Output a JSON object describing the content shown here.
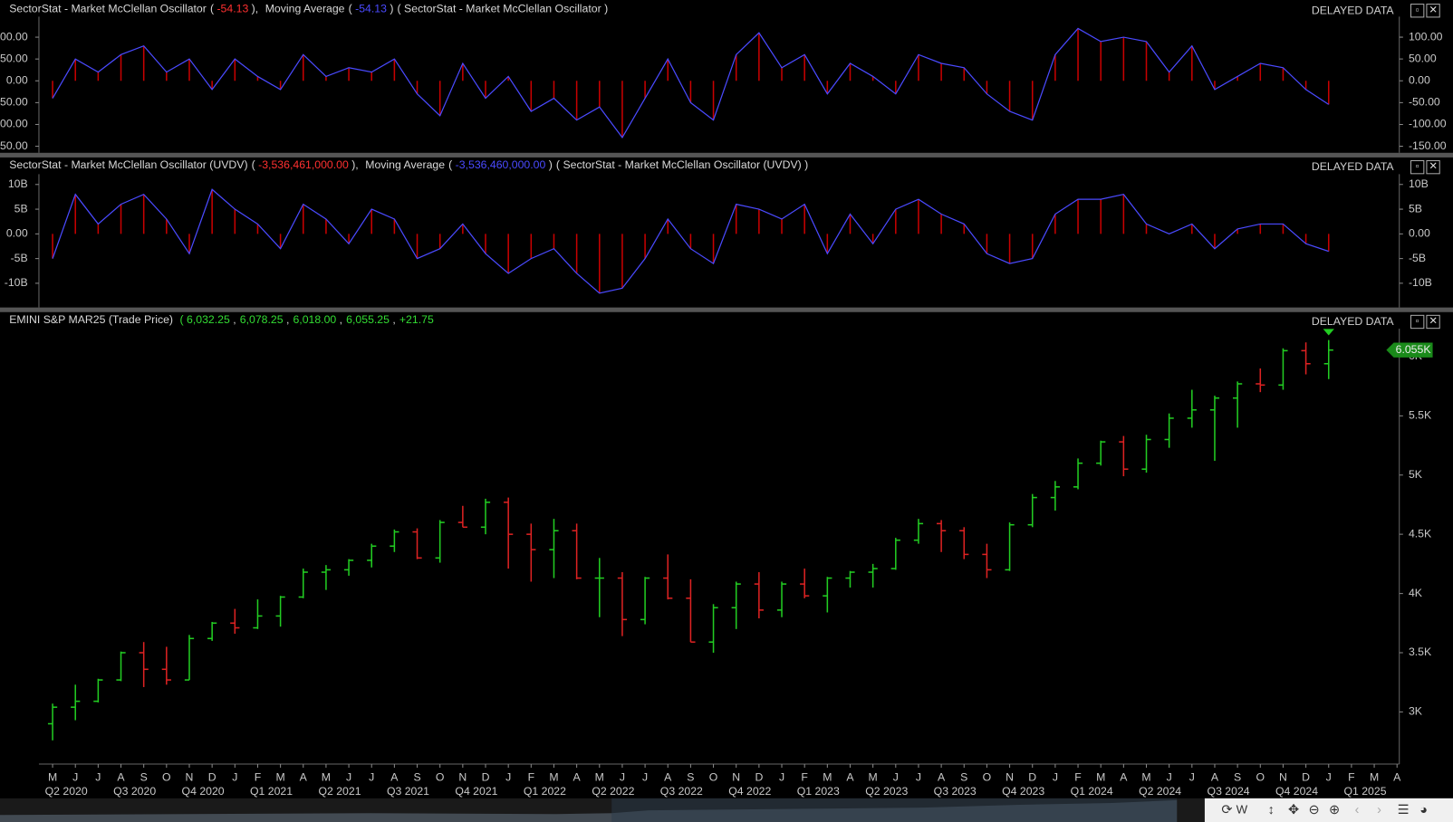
{
  "delayed": "DELAYED DATA",
  "toolbar": {
    "interval": "W"
  },
  "chart_data": [
    {
      "type": "oscillator",
      "name": "SectorStat - Market McClellan Oscillator",
      "value_label": "-54.13",
      "ma_name": "Moving Average",
      "ma_value_label": "-54.13",
      "source": "SectorStat - Market McClellan Oscillator",
      "color": "#c80000",
      "line_color": "#4a4aff",
      "xlim": [
        -0.6,
        59.1
      ],
      "ylim": [
        -165,
        147
      ],
      "yticks": [
        {
          "value": 100,
          "label": "100.00"
        },
        {
          "value": 50,
          "label": "50.00"
        },
        {
          "value": 0,
          "label": "0.00"
        },
        {
          "value": -50,
          "label": "-50.00"
        },
        {
          "value": -100,
          "label": "-100.00"
        },
        {
          "value": -150,
          "label": "-150.00"
        }
      ],
      "values": [
        -40,
        50,
        20,
        60,
        80,
        20,
        50,
        -20,
        50,
        10,
        -20,
        60,
        10,
        30,
        20,
        50,
        -30,
        -80,
        40,
        -40,
        10,
        -70,
        -40,
        -90,
        -60,
        -130,
        -40,
        50,
        -50,
        -90,
        60,
        110,
        30,
        60,
        -30,
        40,
        10,
        -30,
        60,
        40,
        30,
        -30,
        -70,
        -90,
        60,
        120,
        90,
        100,
        90,
        20,
        80,
        -20,
        10,
        40,
        30,
        -20,
        -54.13
      ]
    },
    {
      "type": "oscillator",
      "name": "SectorStat - Market McClellan Oscillator (UVDV)",
      "value_label": "-3,536,461,000.00",
      "ma_name": "Moving Average",
      "ma_value_label": "-3,536,460,000.00",
      "source": "SectorStat - Market McClellan Oscillator (UVDV)",
      "color": "#c80000",
      "line_color": "#4a4aff",
      "xlim": [
        -0.6,
        59.1
      ],
      "ylim": [
        -14900000000.0,
        12100000000.0
      ],
      "yticks": [
        {
          "value": 10000000000.0,
          "label": "10B"
        },
        {
          "value": 5000000000.0,
          "label": "5B"
        },
        {
          "value": 0,
          "label": "0.00"
        },
        {
          "value": -5000000000.0,
          "label": "-5B"
        },
        {
          "value": -10000000000.0,
          "label": "-10B"
        }
      ],
      "values": [
        -5000000000.0,
        8000000000.0,
        2000000000.0,
        6000000000.0,
        8000000000.0,
        3000000000.0,
        -4000000000.0,
        9000000000.0,
        5000000000.0,
        2000000000.0,
        -3000000000.0,
        6000000000.0,
        3000000000.0,
        -2000000000.0,
        5000000000.0,
        3000000000.0,
        -5000000000.0,
        -3000000000.0,
        2000000000.0,
        -4000000000.0,
        -8000000000.0,
        -5000000000.0,
        -3000000000.0,
        -8000000000.0,
        -12000000000.0,
        -11000000000.0,
        -5000000000.0,
        3000000000.0,
        -3000000000.0,
        -6000000000.0,
        6000000000.0,
        5000000000.0,
        3000000000.0,
        6000000000.0,
        -4000000000.0,
        4000000000.0,
        -2000000000.0,
        5000000000.0,
        7000000000.0,
        4000000000.0,
        2000000000.0,
        -4000000000.0,
        -6000000000.0,
        -5000000000.0,
        4000000000.0,
        7000000000.0,
        7000000000.0,
        8000000000.0,
        2000000000.0,
        0,
        2000000000.0,
        -3000000000.0,
        1000000000.0,
        2000000000.0,
        2000000000.0,
        -2000000000.0,
        -3536461000
      ]
    },
    {
      "type": "ohlc",
      "name": "EMINI S&P MAR25 (Trade Price)",
      "quote": [
        "6,032.25",
        "6,078.25",
        "6,018.00",
        "6,055.25",
        "+21.75"
      ],
      "last_label": "6.055K",
      "up_color": "#22cc22",
      "down_color": "#dd2222",
      "xlim": [
        -0.6,
        59.1
      ],
      "ylim": [
        2560,
        6235
      ],
      "yticks": [
        {
          "value": 3000,
          "label": "3K"
        },
        {
          "value": 3500,
          "label": "3.5K"
        },
        {
          "value": 4000,
          "label": "4K"
        },
        {
          "value": 4500,
          "label": "4.5K"
        },
        {
          "value": 5000,
          "label": "5K"
        },
        {
          "value": 5500,
          "label": "5.5K"
        },
        {
          "value": 6000,
          "label": "6K"
        }
      ],
      "xticks": [
        {
          "value": 0,
          "label": "M"
        },
        {
          "value": 1,
          "label": "J"
        },
        {
          "value": 2,
          "label": "J"
        },
        {
          "value": 3,
          "label": "A"
        },
        {
          "value": 4,
          "label": "S"
        },
        {
          "value": 5,
          "label": "O"
        },
        {
          "value": 6,
          "label": "N"
        },
        {
          "value": 7,
          "label": "D"
        },
        {
          "value": 8,
          "label": "J"
        },
        {
          "value": 9,
          "label": "F"
        },
        {
          "value": 10,
          "label": "M"
        },
        {
          "value": 11,
          "label": "A"
        },
        {
          "value": 12,
          "label": "M"
        },
        {
          "value": 13,
          "label": "J"
        },
        {
          "value": 14,
          "label": "J"
        },
        {
          "value": 15,
          "label": "A"
        },
        {
          "value": 16,
          "label": "S"
        },
        {
          "value": 17,
          "label": "O"
        },
        {
          "value": 18,
          "label": "N"
        },
        {
          "value": 19,
          "label": "D"
        },
        {
          "value": 20,
          "label": "J"
        },
        {
          "value": 21,
          "label": "F"
        },
        {
          "value": 22,
          "label": "M"
        },
        {
          "value": 23,
          "label": "A"
        },
        {
          "value": 24,
          "label": "M"
        },
        {
          "value": 25,
          "label": "J"
        },
        {
          "value": 26,
          "label": "J"
        },
        {
          "value": 27,
          "label": "A"
        },
        {
          "value": 28,
          "label": "S"
        },
        {
          "value": 29,
          "label": "O"
        },
        {
          "value": 30,
          "label": "N"
        },
        {
          "value": 31,
          "label": "D"
        },
        {
          "value": 32,
          "label": "J"
        },
        {
          "value": 33,
          "label": "F"
        },
        {
          "value": 34,
          "label": "M"
        },
        {
          "value": 35,
          "label": "A"
        },
        {
          "value": 36,
          "label": "M"
        },
        {
          "value": 37,
          "label": "J"
        },
        {
          "value": 38,
          "label": "J"
        },
        {
          "value": 39,
          "label": "A"
        },
        {
          "value": 40,
          "label": "S"
        },
        {
          "value": 41,
          "label": "O"
        },
        {
          "value": 42,
          "label": "N"
        },
        {
          "value": 43,
          "label": "D"
        },
        {
          "value": 44,
          "label": "J"
        },
        {
          "value": 45,
          "label": "F"
        },
        {
          "value": 46,
          "label": "M"
        },
        {
          "value": 47,
          "label": "A"
        },
        {
          "value": 48,
          "label": "M"
        },
        {
          "value": 49,
          "label": "J"
        },
        {
          "value": 50,
          "label": "J"
        },
        {
          "value": 51,
          "label": "A"
        },
        {
          "value": 52,
          "label": "S"
        },
        {
          "value": 53,
          "label": "O"
        },
        {
          "value": 54,
          "label": "N"
        },
        {
          "value": 55,
          "label": "D"
        },
        {
          "value": 56,
          "label": "J"
        },
        {
          "value": 57,
          "label": "F"
        },
        {
          "value": 58,
          "label": "M"
        },
        {
          "value": 59,
          "label": "A"
        }
      ],
      "quarter_ticks": [
        {
          "value": 0.6,
          "label": "Q2 2020"
        },
        {
          "value": 3.6,
          "label": "Q3 2020"
        },
        {
          "value": 6.6,
          "label": "Q4 2020"
        },
        {
          "value": 9.6,
          "label": "Q1 2021"
        },
        {
          "value": 12.6,
          "label": "Q2 2021"
        },
        {
          "value": 15.6,
          "label": "Q3 2021"
        },
        {
          "value": 18.6,
          "label": "Q4 2021"
        },
        {
          "value": 21.6,
          "label": "Q1 2022"
        },
        {
          "value": 24.6,
          "label": "Q2 2022"
        },
        {
          "value": 27.6,
          "label": "Q3 2022"
        },
        {
          "value": 30.6,
          "label": "Q4 2022"
        },
        {
          "value": 33.6,
          "label": "Q1 2023"
        },
        {
          "value": 36.6,
          "label": "Q2 2023"
        },
        {
          "value": 39.6,
          "label": "Q3 2023"
        },
        {
          "value": 42.6,
          "label": "Q4 2023"
        },
        {
          "value": 45.6,
          "label": "Q1 2024"
        },
        {
          "value": 48.6,
          "label": "Q2 2024"
        },
        {
          "value": 51.6,
          "label": "Q3 2024"
        },
        {
          "value": 54.6,
          "label": "Q4 2024"
        },
        {
          "value": 57.6,
          "label": "Q1 2025"
        }
      ],
      "values": [
        [
          2900,
          3070,
          2760,
          3040
        ],
        [
          3040,
          3230,
          2930,
          3090
        ],
        [
          3090,
          3280,
          3080,
          3270
        ],
        [
          3270,
          3510,
          3260,
          3500
        ],
        [
          3500,
          3590,
          3210,
          3360
        ],
        [
          3360,
          3550,
          3230,
          3270
        ],
        [
          3270,
          3650,
          3270,
          3620
        ],
        [
          3620,
          3760,
          3600,
          3750
        ],
        [
          3750,
          3870,
          3660,
          3710
        ],
        [
          3710,
          3950,
          3700,
          3810
        ],
        [
          3810,
          3980,
          3720,
          3970
        ],
        [
          3970,
          4210,
          3960,
          4180
        ],
        [
          4180,
          4240,
          4030,
          4200
        ],
        [
          4200,
          4290,
          4150,
          4280
        ],
        [
          4280,
          4420,
          4220,
          4400
        ],
        [
          4400,
          4540,
          4350,
          4520
        ],
        [
          4520,
          4550,
          4290,
          4300
        ],
        [
          4300,
          4620,
          4260,
          4600
        ],
        [
          4600,
          4740,
          4560,
          4560
        ],
        [
          4560,
          4800,
          4500,
          4770
        ],
        [
          4770,
          4810,
          4210,
          4500
        ],
        [
          4500,
          4590,
          4100,
          4370
        ],
        [
          4370,
          4630,
          4130,
          4530
        ],
        [
          4530,
          4590,
          4120,
          4130
        ],
        [
          4130,
          4300,
          3800,
          4130
        ],
        [
          4130,
          4180,
          3640,
          3780
        ],
        [
          3780,
          4140,
          3740,
          4130
        ],
        [
          4130,
          4330,
          3950,
          3960
        ],
        [
          3960,
          4120,
          3590,
          3590
        ],
        [
          3590,
          3910,
          3500,
          3880
        ],
        [
          3880,
          4100,
          3700,
          4080
        ],
        [
          4080,
          4180,
          3790,
          3860
        ],
        [
          3860,
          4100,
          3800,
          4080
        ],
        [
          4080,
          4210,
          3960,
          3980
        ],
        [
          3980,
          4140,
          3840,
          4130
        ],
        [
          4130,
          4190,
          4050,
          4180
        ],
        [
          4180,
          4250,
          4050,
          4210
        ],
        [
          4210,
          4470,
          4200,
          4450
        ],
        [
          4450,
          4630,
          4420,
          4590
        ],
        [
          4590,
          4620,
          4350,
          4530
        ],
        [
          4530,
          4560,
          4290,
          4330
        ],
        [
          4330,
          4420,
          4130,
          4200
        ],
        [
          4200,
          4600,
          4190,
          4580
        ],
        [
          4580,
          4840,
          4560,
          4810
        ],
        [
          4810,
          4950,
          4700,
          4900
        ],
        [
          4900,
          5140,
          4880,
          5100
        ],
        [
          5100,
          5290,
          5080,
          5280
        ],
        [
          5280,
          5330,
          4990,
          5050
        ],
        [
          5050,
          5340,
          5020,
          5300
        ],
        [
          5300,
          5520,
          5230,
          5480
        ],
        [
          5480,
          5720,
          5400,
          5550
        ],
        [
          5550,
          5670,
          5120,
          5650
        ],
        [
          5650,
          5790,
          5400,
          5770
        ],
        [
          5770,
          5900,
          5700,
          5760
        ],
        [
          5760,
          6070,
          5720,
          6050
        ],
        [
          6050,
          6120,
          5850,
          5940
        ],
        [
          5940,
          6140,
          5810,
          6055.25
        ]
      ]
    }
  ]
}
